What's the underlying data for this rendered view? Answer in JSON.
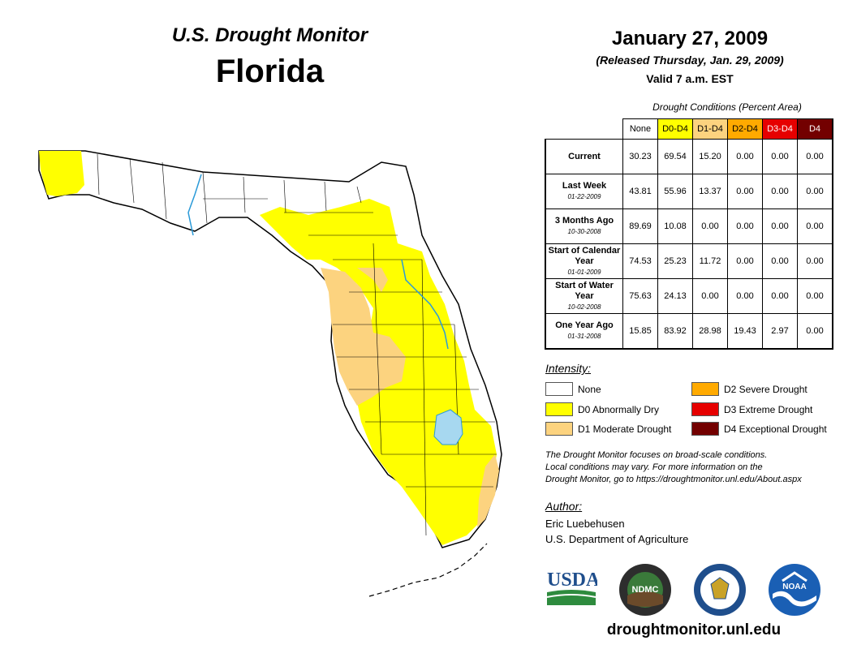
{
  "header": {
    "subtitle": "U.S. Drought Monitor",
    "state": "Florida"
  },
  "release": {
    "date": "January 27, 2009",
    "released": "(Released Thursday, Jan. 29, 2009)",
    "valid": "Valid 7 a.m. EST"
  },
  "table": {
    "title": "Drought Conditions (Percent Area)",
    "columns": [
      "None",
      "D0-D4",
      "D1-D4",
      "D2-D4",
      "D3-D4",
      "D4"
    ],
    "column_colors": [
      "#ffffff",
      "#ffff00",
      "#fcd37f",
      "#ffaa00",
      "#e60000",
      "#730000"
    ],
    "column_text_colors": [
      "#000000",
      "#000000",
      "#000000",
      "#000000",
      "#ffffff",
      "#ffffff"
    ],
    "rows": [
      {
        "label": "Current",
        "date": "",
        "values": [
          "30.23",
          "69.54",
          "15.20",
          "0.00",
          "0.00",
          "0.00"
        ]
      },
      {
        "label": "Last Week",
        "date": "01-22-2009",
        "values": [
          "43.81",
          "55.96",
          "13.37",
          "0.00",
          "0.00",
          "0.00"
        ]
      },
      {
        "label": "3 Months Ago",
        "date": "10-30-2008",
        "values": [
          "89.69",
          "10.08",
          "0.00",
          "0.00",
          "0.00",
          "0.00"
        ]
      },
      {
        "label": "Start of Calendar Year",
        "date": "01-01-2009",
        "values": [
          "74.53",
          "25.23",
          "11.72",
          "0.00",
          "0.00",
          "0.00"
        ]
      },
      {
        "label": "Start of Water Year",
        "date": "10-02-2008",
        "values": [
          "75.63",
          "24.13",
          "0.00",
          "0.00",
          "0.00",
          "0.00"
        ]
      },
      {
        "label": "One Year Ago",
        "date": "01-31-2008",
        "values": [
          "15.85",
          "83.92",
          "28.98",
          "19.43",
          "2.97",
          "0.00"
        ]
      }
    ]
  },
  "legend": {
    "title": "Intensity:",
    "items": [
      {
        "label": "None",
        "color": "#ffffff"
      },
      {
        "label": "D0 Abnormally Dry",
        "color": "#ffff00"
      },
      {
        "label": "D1 Moderate Drought",
        "color": "#fcd37f"
      },
      {
        "label": "D2 Severe Drought",
        "color": "#ffaa00"
      },
      {
        "label": "D3 Extreme Drought",
        "color": "#e60000"
      },
      {
        "label": "D4 Exceptional Drought",
        "color": "#730000"
      }
    ]
  },
  "note": {
    "line1": "The Drought Monitor focuses on broad-scale conditions.",
    "line2": "Local conditions may vary. For more information on the",
    "line3": "Drought Monitor, go to https://droughtmonitor.unl.edu/About.aspx"
  },
  "author": {
    "title": "Author:",
    "name": "Eric Luebehusen",
    "org": "U.S. Department of Agriculture"
  },
  "logos": {
    "usda": "USDA",
    "ndmc": "NDMC",
    "noaa": "NOAA"
  },
  "website": "droughtmonitor.unl.edu",
  "map_colors": {
    "none": "#ffffff",
    "d0": "#ffff00",
    "d1": "#fcd37f",
    "water": "#a7d8f0",
    "river": "#2a9ad8"
  }
}
